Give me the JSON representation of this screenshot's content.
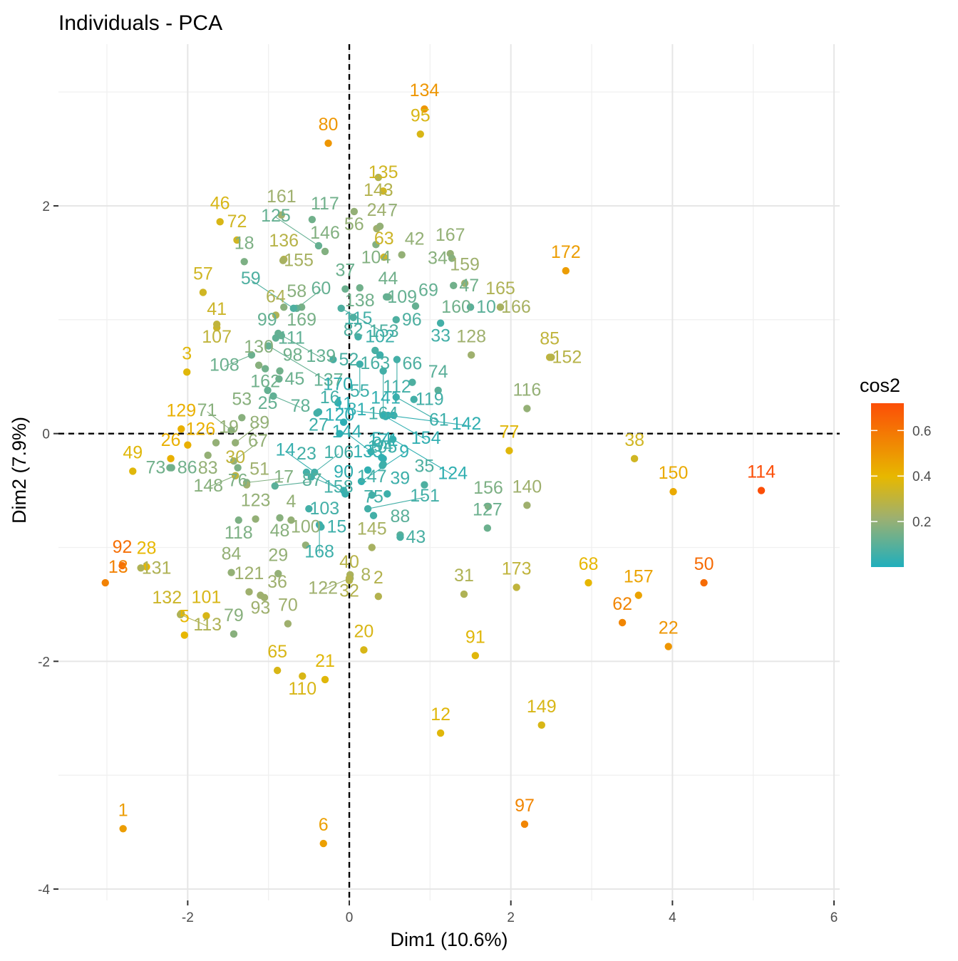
{
  "chart_data": {
    "type": "scatter",
    "title": "Individuals - PCA",
    "xlabel": "Dim1 (10.6%)",
    "ylabel": "Dim2 (7.9%)",
    "xlim": [
      -3.6,
      6.07
    ],
    "ylim": [
      -4.1,
      3.42
    ],
    "xticks": [
      -2,
      0,
      2,
      4,
      6
    ],
    "xtick_labels": [
      "-2",
      "0",
      "2",
      "4",
      "6"
    ],
    "yticks": [
      -4,
      -2,
      0,
      2
    ],
    "ytick_labels": [
      "-4",
      "-2",
      "0",
      "2"
    ],
    "grid": true,
    "reference_lines": {
      "x": 0,
      "y": 0,
      "style": "dashed"
    },
    "color_variable": "cos2",
    "legend": {
      "title": "cos2",
      "position": "right",
      "range": [
        0.0,
        0.72
      ],
      "ticks": [
        0.2,
        0.4,
        0.6
      ],
      "tick_labels": [
        "0.2",
        "0.4",
        "0.6"
      ],
      "colors": [
        "#20AFBC",
        "#E7B800",
        "#FC4E07"
      ]
    },
    "points": [
      {
        "id": "1",
        "x": -2.8,
        "y": -3.47,
        "cos2": 0.48
      },
      {
        "id": "6",
        "x": -0.32,
        "y": -3.6,
        "cos2": 0.47
      },
      {
        "id": "97",
        "x": 2.17,
        "y": -3.43,
        "cos2": 0.55
      },
      {
        "id": "12",
        "x": 1.13,
        "y": -2.63,
        "cos2": 0.38
      },
      {
        "id": "149",
        "x": 2.38,
        "y": -2.56,
        "cos2": 0.36
      },
      {
        "id": "114",
        "x": 5.1,
        "y": -0.5,
        "cos2": 0.72
      },
      {
        "id": "50",
        "x": 4.39,
        "y": -1.31,
        "cos2": 0.63
      },
      {
        "id": "22",
        "x": 3.95,
        "y": -1.87,
        "cos2": 0.5
      },
      {
        "id": "62",
        "x": 3.38,
        "y": -1.66,
        "cos2": 0.55
      },
      {
        "id": "157",
        "x": 3.58,
        "y": -1.42,
        "cos2": 0.46
      },
      {
        "id": "68",
        "x": 2.96,
        "y": -1.31,
        "cos2": 0.4
      },
      {
        "id": "150",
        "x": 4.01,
        "y": -0.51,
        "cos2": 0.44
      },
      {
        "id": "38",
        "x": 3.53,
        "y": -0.22,
        "cos2": 0.34
      },
      {
        "id": "173",
        "x": 2.07,
        "y": -1.35,
        "cos2": 0.3
      },
      {
        "id": "91",
        "x": 1.56,
        "y": -1.95,
        "cos2": 0.38
      },
      {
        "id": "77",
        "x": 1.98,
        "y": -0.15,
        "cos2": 0.38
      },
      {
        "id": "140",
        "x": 2.2,
        "y": -0.63,
        "cos2": 0.22
      },
      {
        "id": "172",
        "x": 2.68,
        "y": 1.43,
        "cos2": 0.48
      },
      {
        "id": "85",
        "x": 2.48,
        "y": 0.67,
        "cos2": 0.3
      },
      {
        "id": "116",
        "x": 2.2,
        "y": 0.22,
        "cos2": 0.2
      },
      {
        "id": "134",
        "x": 0.93,
        "y": 2.85,
        "cos2": 0.5
      },
      {
        "id": "95",
        "x": 0.88,
        "y": 2.63,
        "cos2": 0.36
      },
      {
        "id": "80",
        "x": -0.26,
        "y": 2.55,
        "cos2": 0.5
      },
      {
        "id": "135",
        "x": 0.42,
        "y": 2.13,
        "cos2": 0.34
      },
      {
        "id": "143",
        "x": 0.36,
        "y": 2.25,
        "cos2": 0.27
      },
      {
        "id": "46",
        "x": -1.6,
        "y": 1.86,
        "cos2": 0.36
      },
      {
        "id": "72",
        "x": -1.39,
        "y": 1.7,
        "cos2": 0.34
      },
      {
        "id": "63",
        "x": 0.43,
        "y": 1.55,
        "cos2": 0.33
      },
      {
        "id": "57",
        "x": -1.81,
        "y": 1.24,
        "cos2": 0.34
      },
      {
        "id": "41",
        "x": -1.64,
        "y": 0.93,
        "cos2": 0.33
      },
      {
        "id": "3",
        "x": -2.01,
        "y": 0.54,
        "cos2": 0.38
      },
      {
        "id": "129",
        "x": -2.08,
        "y": 0.04,
        "cos2": 0.42
      },
      {
        "id": "126",
        "x": -2.0,
        "y": -0.1,
        "cos2": 0.42
      },
      {
        "id": "26",
        "x": -2.21,
        "y": -0.22,
        "cos2": 0.42
      },
      {
        "id": "49",
        "x": -2.68,
        "y": -0.33,
        "cos2": 0.38
      },
      {
        "id": "28",
        "x": -2.51,
        "y": -1.17,
        "cos2": 0.4
      },
      {
        "id": "131",
        "x": -2.58,
        "y": -1.18,
        "cos2": 0.26
      },
      {
        "id": "92",
        "x": -2.81,
        "y": -1.16,
        "cos2": 0.62
      },
      {
        "id": "13",
        "x": -3.02,
        "y": -1.31,
        "cos2": 0.56
      },
      {
        "id": "5",
        "x": -2.04,
        "y": -1.77,
        "cos2": 0.4
      },
      {
        "id": "101",
        "x": -1.77,
        "y": -1.6,
        "cos2": 0.36
      },
      {
        "id": "132",
        "x": -2.08,
        "y": -1.58,
        "cos2": 0.33
      },
      {
        "id": "65",
        "x": -0.89,
        "y": -2.08,
        "cos2": 0.36
      },
      {
        "id": "110",
        "x": -0.58,
        "y": -2.13,
        "cos2": 0.36
      },
      {
        "id": "21",
        "x": -0.3,
        "y": -2.16,
        "cos2": 0.38
      },
      {
        "id": "20",
        "x": 0.18,
        "y": -1.9,
        "cos2": 0.36
      },
      {
        "id": "40",
        "x": 0.0,
        "y": -1.29,
        "cos2": 0.28
      },
      {
        "id": "8",
        "x": 0.01,
        "y": -1.24,
        "cos2": 0.25
      },
      {
        "id": "2",
        "x": 0.36,
        "y": -1.43,
        "cos2": 0.27
      },
      {
        "id": "31",
        "x": 1.42,
        "y": -1.41,
        "cos2": 0.26
      },
      {
        "id": "88",
        "x": 0.63,
        "y": -0.89,
        "cos2": 0.1
      },
      {
        "id": "127",
        "x": 1.71,
        "y": -0.83,
        "cos2": 0.13
      },
      {
        "id": "156",
        "x": 1.72,
        "y": -0.64,
        "cos2": 0.16
      },
      {
        "id": "152",
        "x": 2.5,
        "y": 0.67,
        "cos2": 0.28
      },
      {
        "id": "161",
        "x": -0.84,
        "y": 1.92,
        "cos2": 0.22
      },
      {
        "id": "136",
        "x": -0.81,
        "y": 1.53,
        "cos2": 0.28
      },
      {
        "id": "107",
        "x": -1.64,
        "y": 0.96,
        "cos2": 0.3
      },
      {
        "id": "155",
        "x": -0.82,
        "y": 1.52,
        "cos2": 0.24
      },
      {
        "id": "117",
        "x": -0.46,
        "y": 1.88,
        "cos2": 0.14
      },
      {
        "id": "125",
        "x": -0.38,
        "y": 1.65,
        "cos2": 0.12
      },
      {
        "id": "146",
        "x": -0.3,
        "y": 1.6,
        "cos2": 0.17
      },
      {
        "id": "56",
        "x": 0.06,
        "y": 1.95,
        "cos2": 0.2
      },
      {
        "id": "24",
        "x": 0.34,
        "y": 1.8,
        "cos2": 0.22
      },
      {
        "id": "104",
        "x": 0.33,
        "y": 1.66,
        "cos2": 0.17
      },
      {
        "id": "7",
        "x": 0.38,
        "y": 1.82,
        "cos2": 0.2
      },
      {
        "id": "42",
        "x": 0.65,
        "y": 1.57,
        "cos2": 0.2
      },
      {
        "id": "167",
        "x": 1.25,
        "y": 1.58,
        "cos2": 0.2
      },
      {
        "id": "34",
        "x": 1.27,
        "y": 1.54,
        "cos2": 0.18
      },
      {
        "id": "44",
        "x": 0.48,
        "y": 1.2,
        "cos2": 0.14
      },
      {
        "id": "47",
        "x": 1.29,
        "y": 1.3,
        "cos2": 0.14
      },
      {
        "id": "159",
        "x": 1.43,
        "y": 1.32,
        "cos2": 0.22
      },
      {
        "id": "160",
        "x": 1.5,
        "y": 1.11,
        "cos2": 0.14
      },
      {
        "id": "165",
        "x": 1.87,
        "y": 1.11,
        "cos2": 0.26
      },
      {
        "id": "166",
        "x": 1.87,
        "y": 1.11,
        "cos2": 0.24
      },
      {
        "id": "10",
        "x": 1.5,
        "y": 1.11,
        "cos2": 0.1
      },
      {
        "id": "18",
        "x": -1.3,
        "y": 1.51,
        "cos2": 0.16
      },
      {
        "id": "99",
        "x": -0.84,
        "y": 0.86,
        "cos2": 0.12
      },
      {
        "id": "139",
        "x": -0.88,
        "y": 0.88,
        "cos2": 0.12
      },
      {
        "id": "169",
        "x": -0.59,
        "y": 1.11,
        "cos2": 0.15
      },
      {
        "id": "60",
        "x": -0.65,
        "y": 1.1,
        "cos2": 0.12
      },
      {
        "id": "37",
        "x": -0.05,
        "y": 1.27,
        "cos2": 0.13
      },
      {
        "id": "138",
        "x": 0.13,
        "y": 1.28,
        "cos2": 0.14
      },
      {
        "id": "109",
        "x": 0.46,
        "y": 1.2,
        "cos2": 0.12
      },
      {
        "id": "69",
        "x": 0.82,
        "y": 1.12,
        "cos2": 0.12
      },
      {
        "id": "96",
        "x": 0.58,
        "y": 1.0,
        "cos2": 0.08
      },
      {
        "id": "33",
        "x": 1.13,
        "y": 0.97,
        "cos2": 0.06
      },
      {
        "id": "108",
        "x": -1.21,
        "y": 0.69,
        "cos2": 0.13
      },
      {
        "id": "111",
        "x": -0.91,
        "y": 0.84,
        "cos2": 0.11
      },
      {
        "id": "59",
        "x": -0.69,
        "y": 1.1,
        "cos2": 0.08
      },
      {
        "id": "82",
        "x": 0.05,
        "y": 1.02,
        "cos2": 0.08
      },
      {
        "id": "153",
        "x": -0.1,
        "y": 1.1,
        "cos2": 0.08
      },
      {
        "id": "163",
        "x": 0.32,
        "y": 0.73,
        "cos2": 0.07
      },
      {
        "id": "112",
        "x": 0.59,
        "y": 0.65,
        "cos2": 0.06
      },
      {
        "id": "102",
        "x": 0.38,
        "y": 0.69,
        "cos2": 0.05
      },
      {
        "id": "137",
        "x": -1.0,
        "y": 0.77,
        "cos2": 0.12
      },
      {
        "id": "98",
        "x": -0.86,
        "y": 0.55,
        "cos2": 0.14
      },
      {
        "id": "115",
        "x": 0.11,
        "y": 0.85,
        "cos2": 0.06
      },
      {
        "id": "164",
        "x": 0.42,
        "y": 0.55,
        "cos2": 0.06
      },
      {
        "id": "66",
        "x": 0.78,
        "y": 0.45,
        "cos2": 0.08
      },
      {
        "id": "74",
        "x": 1.1,
        "y": 0.38,
        "cos2": 0.1
      },
      {
        "id": "128",
        "x": 1.51,
        "y": 0.69,
        "cos2": 0.22
      },
      {
        "id": "130",
        "x": -1.12,
        "y": 0.6,
        "cos2": 0.18
      },
      {
        "id": "162",
        "x": -1.04,
        "y": 0.57,
        "cos2": 0.14
      },
      {
        "id": "25",
        "x": -1.01,
        "y": 0.38,
        "cos2": 0.12
      },
      {
        "id": "45",
        "x": -0.87,
        "y": 0.48,
        "cos2": 0.13
      },
      {
        "id": "78",
        "x": -0.94,
        "y": 0.33,
        "cos2": 0.11
      },
      {
        "id": "52",
        "x": -0.2,
        "y": 0.65,
        "cos2": 0.07
      },
      {
        "id": "55",
        "x": 0.13,
        "y": 0.61,
        "cos2": 0.05
      },
      {
        "id": "61",
        "x": 0.58,
        "y": 0.32,
        "cos2": 0.05
      },
      {
        "id": "119",
        "x": 0.8,
        "y": 0.3,
        "cos2": 0.06
      },
      {
        "id": "19",
        "x": -1.65,
        "y": -0.08,
        "cos2": 0.2
      },
      {
        "id": "89",
        "x": -1.41,
        "y": -0.08,
        "cos2": 0.2
      },
      {
        "id": "71",
        "x": -1.46,
        "y": 0.03,
        "cos2": 0.18
      },
      {
        "id": "27",
        "x": -0.38,
        "y": 0.19,
        "cos2": 0.05
      },
      {
        "id": "16",
        "x": -0.4,
        "y": 0.18,
        "cos2": 0.06
      },
      {
        "id": "53",
        "x": -1.33,
        "y": 0.14,
        "cos2": 0.18
      },
      {
        "id": "170",
        "x": -0.14,
        "y": 0.27,
        "cos2": 0.03
      },
      {
        "id": "81",
        "x": 0.55,
        "y": 0.16,
        "cos2": 0.03
      },
      {
        "id": "154",
        "x": 0.42,
        "y": 0.16,
        "cos2": 0.03
      },
      {
        "id": "141",
        "x": 0.45,
        "y": 0.15,
        "cos2": 0.03
      },
      {
        "id": "142",
        "x": 0.48,
        "y": 0.16,
        "cos2": 0.03
      },
      {
        "id": "11",
        "x": -0.07,
        "y": 0.1,
        "cos2": 0.02
      },
      {
        "id": "120",
        "x": -0.12,
        "y": 0.0,
        "cos2": 0.02
      },
      {
        "id": "124",
        "x": 0.54,
        "y": -0.05,
        "cos2": 0.03
      },
      {
        "id": "54",
        "x": 0.4,
        "y": -0.21,
        "cos2": 0.03
      },
      {
        "id": "171",
        "x": 0.42,
        "y": -0.22,
        "cos2": 0.03
      },
      {
        "id": "144",
        "x": 0.27,
        "y": -0.16,
        "cos2": 0.03
      },
      {
        "id": "86",
        "x": -2.2,
        "y": -0.3,
        "cos2": 0.14
      },
      {
        "id": "83",
        "x": -1.75,
        "y": -0.19,
        "cos2": 0.2
      },
      {
        "id": "76",
        "x": -1.38,
        "y": -0.3,
        "cos2": 0.16
      },
      {
        "id": "23",
        "x": -0.53,
        "y": -0.34,
        "cos2": 0.06
      },
      {
        "id": "106",
        "x": -0.43,
        "y": -0.34,
        "cos2": 0.06
      },
      {
        "id": "133",
        "x": 0.23,
        "y": -0.32,
        "cos2": 0.03
      },
      {
        "id": "9",
        "x": 0.15,
        "y": -0.42,
        "cos2": 0.03
      },
      {
        "id": "94",
        "x": 0.42,
        "y": -0.27,
        "cos2": 0.05
      },
      {
        "id": "105",
        "x": 0.41,
        "y": -0.28,
        "cos2": 0.05
      },
      {
        "id": "35",
        "x": 0.93,
        "y": -0.45,
        "cos2": 0.08
      },
      {
        "id": "148",
        "x": -1.41,
        "y": -0.37,
        "cos2": 0.18
      },
      {
        "id": "17",
        "x": -1.27,
        "y": -0.43,
        "cos2": 0.17
      },
      {
        "id": "158",
        "x": -0.47,
        "y": -0.38,
        "cos2": 0.06
      },
      {
        "id": "90",
        "x": -0.07,
        "y": -0.5,
        "cos2": 0.03
      },
      {
        "id": "147",
        "x": 0.28,
        "y": -0.54,
        "cos2": 0.06
      },
      {
        "id": "39",
        "x": 0.47,
        "y": -0.53,
        "cos2": 0.05
      },
      {
        "id": "30",
        "x": -1.41,
        "y": -0.37,
        "cos2": 0.3
      },
      {
        "id": "51",
        "x": -1.27,
        "y": -0.45,
        "cos2": 0.22
      },
      {
        "id": "87",
        "x": -0.92,
        "y": -0.46,
        "cos2": 0.1
      },
      {
        "id": "103",
        "x": -0.5,
        "y": -0.66,
        "cos2": 0.06
      },
      {
        "id": "168",
        "x": -0.37,
        "y": -0.8,
        "cos2": 0.05
      },
      {
        "id": "14",
        "x": -0.05,
        "y": -0.53,
        "cos2": 0.04
      },
      {
        "id": "151",
        "x": 0.23,
        "y": -0.66,
        "cos2": 0.06
      },
      {
        "id": "75",
        "x": 0.3,
        "y": -0.72,
        "cos2": 0.06
      },
      {
        "id": "43",
        "x": 0.63,
        "y": -0.91,
        "cos2": 0.07
      },
      {
        "id": "118",
        "x": -1.37,
        "y": -0.76,
        "cos2": 0.16
      },
      {
        "id": "123",
        "x": -1.16,
        "y": -0.75,
        "cos2": 0.2
      },
      {
        "id": "15",
        "x": -0.35,
        "y": -0.82,
        "cos2": 0.05
      },
      {
        "id": "84",
        "x": -1.46,
        "y": -1.22,
        "cos2": 0.2
      },
      {
        "id": "48",
        "x": -0.86,
        "y": -0.74,
        "cos2": 0.18
      },
      {
        "id": "4",
        "x": -0.72,
        "y": -0.76,
        "cos2": 0.2
      },
      {
        "id": "100",
        "x": -0.54,
        "y": -0.98,
        "cos2": 0.2
      },
      {
        "id": "145",
        "x": 0.28,
        "y": -1.0,
        "cos2": 0.24
      },
      {
        "id": "122",
        "x": 0.01,
        "y": -1.27,
        "cos2": 0.22
      },
      {
        "id": "73",
        "x": -2.22,
        "y": -0.3,
        "cos2": 0.14
      },
      {
        "id": "121",
        "x": -1.24,
        "y": -1.39,
        "cos2": 0.22
      },
      {
        "id": "36",
        "x": -1.05,
        "y": -1.44,
        "cos2": 0.22
      },
      {
        "id": "29",
        "x": -0.88,
        "y": -1.23,
        "cos2": 0.2
      },
      {
        "id": "79",
        "x": -1.43,
        "y": -1.76,
        "cos2": 0.18
      },
      {
        "id": "93",
        "x": -1.1,
        "y": -1.42,
        "cos2": 0.22
      },
      {
        "id": "70",
        "x": -0.76,
        "y": -1.67,
        "cos2": 0.22
      },
      {
        "id": "67",
        "x": -1.43,
        "y": -0.24,
        "cos2": 0.2
      },
      {
        "id": "113",
        "x": -2.09,
        "y": -1.59,
        "cos2": 0.26
      },
      {
        "id": "32",
        "x": 0.0,
        "y": -1.27,
        "cos2": 0.27
      },
      {
        "id": "64",
        "x": -0.91,
        "y": 1.04,
        "cos2": 0.26
      },
      {
        "id": "58",
        "x": -0.81,
        "y": 1.11,
        "cos2": 0.18
      }
    ]
  }
}
